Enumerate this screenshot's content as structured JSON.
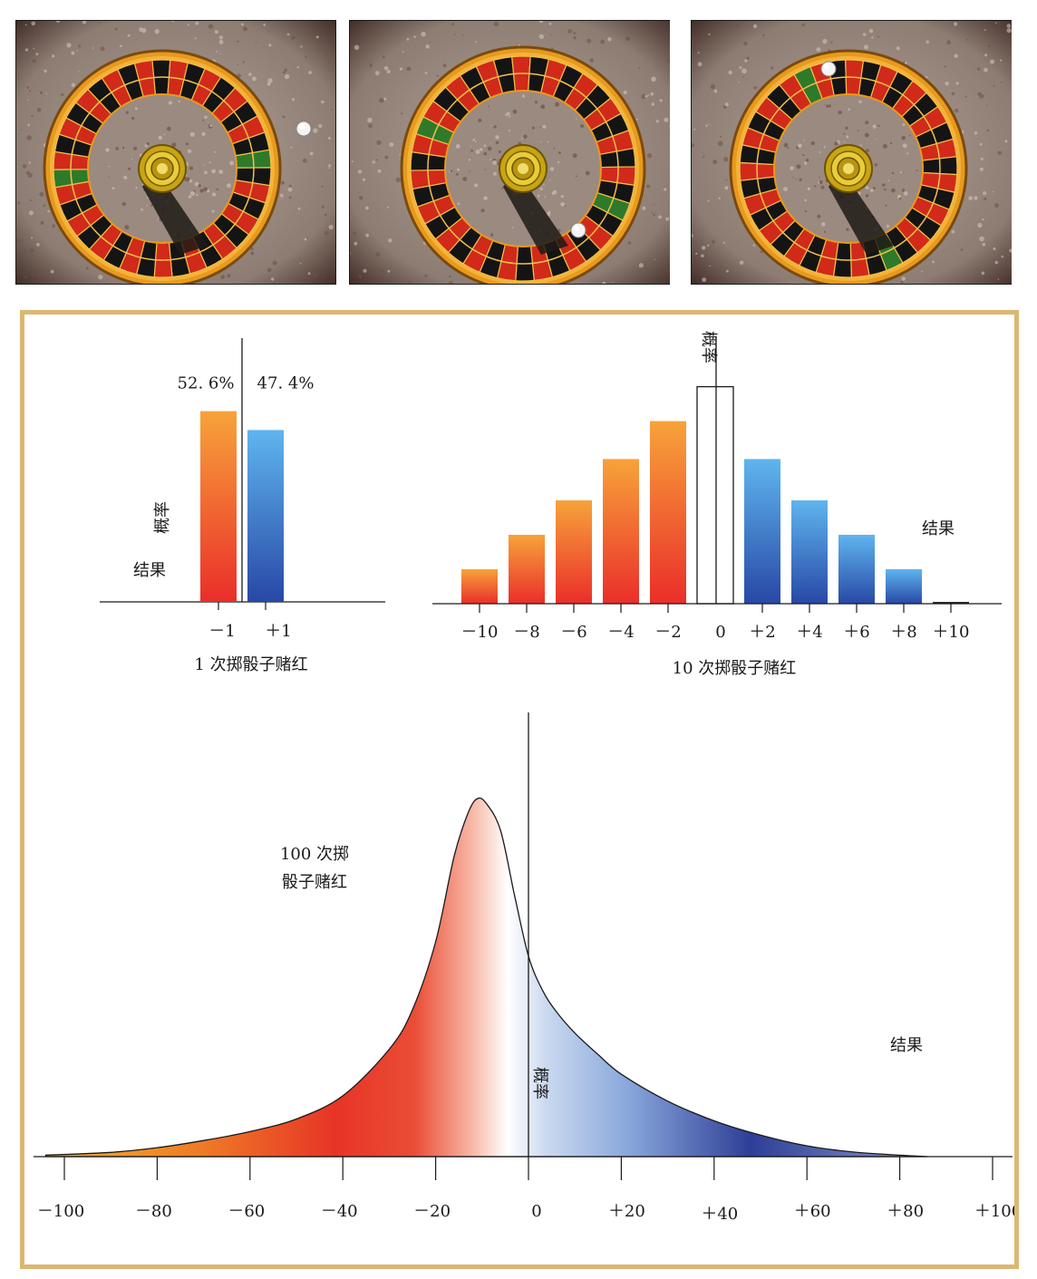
{
  "colors": {
    "frame": "#dcb773",
    "red_bar_top": "#f7a33a",
    "red_bar_bottom": "#ea2e2a",
    "blue_bar_top": "#5fb5ee",
    "blue_bar_bottom": "#2848a6",
    "curve_left": "#f2a22a",
    "curve_red": "#e73426",
    "curve_center": "#ffffff",
    "curve_blue": "#2e3e96"
  },
  "photos": {
    "wheel_icons": [
      "roulette-wheel",
      "roulette-wheel",
      "roulette-wheel"
    ],
    "ball_positions": [
      "outside-right",
      "pocket-bottom-right",
      "pocket-top"
    ]
  },
  "chart_data": [
    {
      "type": "bar",
      "xlabel": "1 次掷骰子赌红",
      "ylabel": "概率",
      "result_label": "结果",
      "categories": [
        "－1",
        "＋1"
      ],
      "values": [
        52.6,
        47.4
      ],
      "data_labels": [
        "52. 6%",
        "47. 4%"
      ]
    },
    {
      "type": "bar",
      "xlabel": "10 次掷骰子赌红",
      "ylabel": "概率",
      "result_label": "结果",
      "x": [
        -10,
        -8,
        -6,
        -4,
        -2,
        0,
        2,
        4,
        6,
        8,
        10
      ],
      "tick_labels": [
        "－10",
        "－8",
        "－6",
        "－4",
        "－2",
        "0",
        "＋2",
        "＋4",
        "＋6",
        "＋8",
        "＋10"
      ],
      "values": [
        10,
        20,
        30,
        42,
        53,
        63,
        42,
        30,
        20,
        10,
        0.5
      ],
      "outlined_bar": 0
    },
    {
      "type": "area",
      "title": "100 次掷 骰子赌红",
      "title_lines": [
        "100 次掷",
        "骰子赌红"
      ],
      "ylabel": "概率",
      "result_label": "结果",
      "xlim": [
        -100,
        100
      ],
      "tick_labels": [
        "－100",
        "－80",
        "－60",
        "－40",
        "－20",
        "0",
        "＋20",
        "＋40",
        "＋60",
        "＋80",
        "＋100"
      ],
      "ticks": [
        -100,
        -80,
        -60,
        -40,
        -20,
        0,
        20,
        40,
        60,
        80,
        100
      ],
      "peak_x": -11,
      "peak_y": 1.0,
      "x": [
        -104,
        -90,
        -80,
        -70,
        -60,
        -50,
        -40,
        -30,
        -25,
        -20,
        -16,
        -13,
        -11,
        -9,
        -6,
        -3,
        0,
        3,
        6,
        10,
        15,
        20,
        30,
        40,
        50,
        60,
        70,
        80,
        86
      ],
      "y": [
        0.004,
        0.012,
        0.025,
        0.045,
        0.07,
        0.105,
        0.17,
        0.3,
        0.41,
        0.6,
        0.84,
        0.96,
        1.0,
        0.985,
        0.91,
        0.73,
        0.56,
        0.465,
        0.405,
        0.345,
        0.285,
        0.23,
        0.155,
        0.1,
        0.06,
        0.03,
        0.013,
        0.004,
        0.0
      ]
    }
  ]
}
